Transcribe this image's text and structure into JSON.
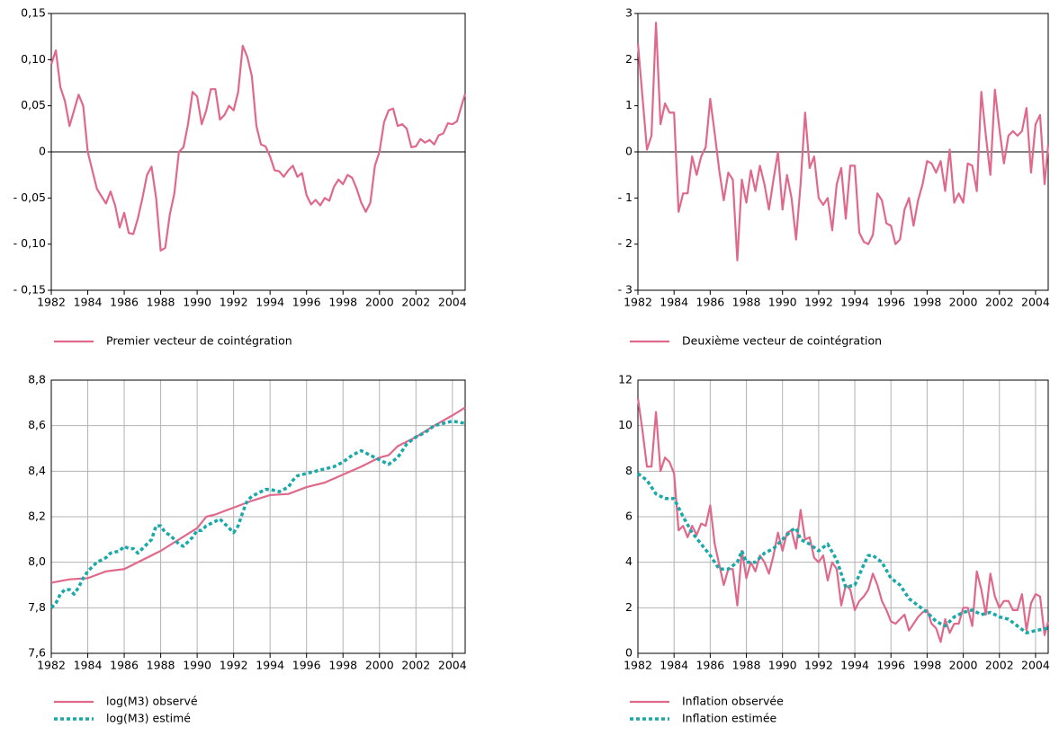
{
  "chart_data": [
    {
      "type": "line",
      "xlim": [
        1982,
        2004.7
      ],
      "xticks": [
        1982,
        1984,
        1986,
        1988,
        1990,
        1992,
        1994,
        1996,
        1998,
        2000,
        2002,
        2004
      ],
      "ylim": [
        -0.15,
        0.15
      ],
      "yticks": [
        {
          "value": 0.15,
          "label": "0,15"
        },
        {
          "value": 0.1,
          "label": "0,10"
        },
        {
          "value": 0.05,
          "label": "0,05"
        },
        0,
        {
          "value": -0.05,
          "label": "- 0,05"
        },
        {
          "value": -0.1,
          "label": "- 0,10"
        },
        {
          "value": -0.15,
          "label": "- 0,15"
        }
      ],
      "grid": false,
      "zero_line": true,
      "x": [
        1982,
        1982.25,
        1982.5,
        1982.75,
        1983,
        1983.25,
        1983.5,
        1983.75,
        1984,
        1984.25,
        1984.5,
        1984.75,
        1985,
        1985.25,
        1985.5,
        1985.75,
        1986,
        1986.25,
        1986.5,
        1986.75,
        1987,
        1987.25,
        1987.5,
        1987.75,
        1988,
        1988.25,
        1988.5,
        1988.75,
        1989,
        1989.25,
        1989.5,
        1989.75,
        1990,
        1990.25,
        1990.5,
        1990.75,
        1991,
        1991.25,
        1991.5,
        1991.75,
        1992,
        1992.25,
        1992.5,
        1992.75,
        1993,
        1993.25,
        1993.5,
        1993.75,
        1994,
        1994.25,
        1994.5,
        1994.75,
        1995,
        1995.25,
        1995.5,
        1995.75,
        1996,
        1996.25,
        1996.5,
        1996.75,
        1997,
        1997.25,
        1997.5,
        1997.75,
        1998,
        1998.25,
        1998.5,
        1998.75,
        1999,
        1999.25,
        1999.5,
        1999.75,
        2000,
        2000.25,
        2000.5,
        2000.75,
        2001,
        2001.25,
        2001.5,
        2001.75,
        2002,
        2002.25,
        2002.5,
        2002.75,
        2003,
        2003.25,
        2003.5,
        2003.75,
        2004,
        2004.25,
        2004.5,
        2004.7
      ],
      "series": [
        {
          "name": "Premier vecteur de cointégration",
          "color": "#e0698b",
          "line_style": "solid",
          "values": [
            0.095,
            0.11,
            0.07,
            0.055,
            0.028,
            0.045,
            0.062,
            0.05,
            0.0,
            -0.02,
            -0.04,
            -0.048,
            -0.056,
            -0.043,
            -0.058,
            -0.082,
            -0.066,
            -0.088,
            -0.089,
            -0.072,
            -0.05,
            -0.025,
            -0.016,
            -0.05,
            -0.107,
            -0.104,
            -0.068,
            -0.045,
            0.0,
            0.005,
            0.03,
            0.065,
            0.06,
            0.03,
            0.045,
            0.068,
            0.068,
            0.035,
            0.04,
            0.05,
            0.045,
            0.065,
            0.115,
            0.103,
            0.082,
            0.028,
            0.008,
            0.006,
            -0.005,
            -0.02,
            -0.021,
            -0.027,
            -0.02,
            -0.015,
            -0.027,
            -0.023,
            -0.047,
            -0.057,
            -0.052,
            -0.058,
            -0.05,
            -0.053,
            -0.038,
            -0.03,
            -0.035,
            -0.025,
            -0.028,
            -0.04,
            -0.055,
            -0.065,
            -0.055,
            -0.015,
            0.0,
            0.032,
            0.045,
            0.047,
            0.028,
            0.03,
            0.025,
            0.005,
            0.006,
            0.014,
            0.01,
            0.013,
            0.008,
            0.018,
            0.02,
            0.031,
            0.03,
            0.033,
            0.05,
            0.063
          ]
        }
      ]
    },
    {
      "type": "line",
      "xlim": [
        1982,
        2004.7
      ],
      "xticks": [
        1982,
        1984,
        1986,
        1988,
        1990,
        1992,
        1994,
        1996,
        1998,
        2000,
        2002,
        2004
      ],
      "ylim": [
        -3,
        3
      ],
      "yticks": [
        3,
        2,
        1,
        0,
        {
          "value": -1,
          "label": "- 1"
        },
        {
          "value": -2,
          "label": "- 2"
        },
        {
          "value": -3,
          "label": "- 3"
        }
      ],
      "grid": false,
      "zero_line": true,
      "x": [
        1982,
        1982.25,
        1982.5,
        1982.75,
        1983,
        1983.25,
        1983.5,
        1983.75,
        1984,
        1984.25,
        1984.5,
        1984.75,
        1985,
        1985.25,
        1985.5,
        1985.75,
        1986,
        1986.25,
        1986.5,
        1986.75,
        1987,
        1987.25,
        1987.5,
        1987.75,
        1988,
        1988.25,
        1988.5,
        1988.75,
        1989,
        1989.25,
        1989.5,
        1989.75,
        1990,
        1990.25,
        1990.5,
        1990.75,
        1991,
        1991.25,
        1991.5,
        1991.75,
        1992,
        1992.25,
        1992.5,
        1992.75,
        1993,
        1993.25,
        1993.5,
        1993.75,
        1994,
        1994.25,
        1994.5,
        1994.75,
        1995,
        1995.25,
        1995.5,
        1995.75,
        1996,
        1996.25,
        1996.5,
        1996.75,
        1997,
        1997.25,
        1997.5,
        1997.75,
        1998,
        1998.25,
        1998.5,
        1998.75,
        1999,
        1999.25,
        1999.5,
        1999.75,
        2000,
        2000.25,
        2000.5,
        2000.75,
        2001,
        2001.25,
        2001.5,
        2001.75,
        2002,
        2002.25,
        2002.5,
        2002.75,
        2003,
        2003.25,
        2003.5,
        2003.75,
        2004,
        2004.25,
        2004.5,
        2004.7
      ],
      "series": [
        {
          "name": "Deuxième vecteur de cointégration",
          "color": "#e0698b",
          "line_style": "solid",
          "values": [
            2.35,
            1.2,
            0.05,
            0.35,
            2.8,
            0.6,
            1.05,
            0.85,
            0.85,
            -1.3,
            -0.9,
            -0.9,
            -0.1,
            -0.5,
            -0.1,
            0.1,
            1.15,
            0.4,
            -0.4,
            -1.05,
            -0.45,
            -0.6,
            -2.35,
            -0.6,
            -1.1,
            -0.4,
            -0.85,
            -0.3,
            -0.7,
            -1.25,
            -0.6,
            0.0,
            -1.25,
            -0.5,
            -1.0,
            -1.9,
            -0.7,
            0.85,
            -0.35,
            -0.1,
            -1.0,
            -1.15,
            -1.0,
            -1.7,
            -0.7,
            -0.35,
            -1.45,
            -0.3,
            -0.3,
            -1.75,
            -1.95,
            -2.0,
            -1.8,
            -0.9,
            -1.05,
            -1.55,
            -1.6,
            -2.0,
            -1.9,
            -1.25,
            -1.0,
            -1.6,
            -1.05,
            -0.7,
            -0.2,
            -0.25,
            -0.45,
            -0.2,
            -0.85,
            0.05,
            -1.1,
            -0.9,
            -1.1,
            -0.25,
            -0.3,
            -0.85,
            1.3,
            0.35,
            -0.5,
            1.35,
            0.5,
            -0.25,
            0.35,
            0.45,
            0.35,
            0.45,
            0.95,
            -0.45,
            0.6,
            0.8,
            -0.7,
            0.15
          ]
        }
      ]
    },
    {
      "type": "line",
      "xlim": [
        1982,
        2004.7
      ],
      "xticks": [
        1982,
        1984,
        1986,
        1988,
        1990,
        1992,
        1994,
        1996,
        1998,
        2000,
        2002,
        2004
      ],
      "ylim": [
        7.6,
        8.8
      ],
      "yticks": [
        {
          "value": 8.8,
          "label": "8,8"
        },
        {
          "value": 8.6,
          "label": "8,6"
        },
        {
          "value": 8.4,
          "label": "8,4"
        },
        {
          "value": 8.2,
          "label": "8,2"
        },
        {
          "value": 8.0,
          "label": "8,0"
        },
        {
          "value": 7.8,
          "label": "7,8"
        },
        {
          "value": 7.6,
          "label": "7,6"
        }
      ],
      "grid": true,
      "zero_line": false,
      "series": [
        {
          "name": "log(M3) observé",
          "color": "#e0698b",
          "line_style": "solid",
          "x": [
            1982,
            1983,
            1984,
            1985,
            1986,
            1987,
            1988,
            1989,
            1990,
            1990.5,
            1991,
            1992,
            1993,
            1994,
            1995,
            1996,
            1997,
            1998,
            1999,
            2000,
            2000.5,
            2001,
            2002,
            2003,
            2004,
            2004.7
          ],
          "values": [
            7.91,
            7.925,
            7.93,
            7.96,
            7.97,
            8.01,
            8.05,
            8.1,
            8.15,
            8.2,
            8.21,
            8.24,
            8.27,
            8.295,
            8.3,
            8.33,
            8.35,
            8.385,
            8.42,
            8.46,
            8.47,
            8.51,
            8.55,
            8.6,
            8.645,
            8.68
          ]
        },
        {
          "name": "log(M3) estimé",
          "color": "#1aa9a9",
          "line_style": "dashed",
          "x": [
            1982,
            1982.25,
            1982.5,
            1982.75,
            1983,
            1983.25,
            1983.5,
            1983.75,
            1984,
            1984.25,
            1984.5,
            1984.75,
            1985,
            1985.25,
            1985.5,
            1985.75,
            1986,
            1986.25,
            1986.5,
            1986.75,
            1987,
            1987.25,
            1987.5,
            1987.75,
            1988,
            1988.25,
            1988.5,
            1988.75,
            1989,
            1989.25,
            1989.5,
            1989.75,
            1990,
            1990.25,
            1990.5,
            1990.75,
            1991,
            1991.25,
            1991.5,
            1991.75,
            1992,
            1992.25,
            1992.5,
            1992.75,
            1993,
            1993.25,
            1993.5,
            1993.75,
            1994,
            1994.5,
            1995,
            1995.25,
            1995.5,
            1996,
            1996.5,
            1997,
            1997.5,
            1998,
            1998.5,
            1999,
            1999.5,
            2000,
            2000.5,
            2001,
            2001.5,
            2002,
            2002.5,
            2003,
            2003.5,
            2004,
            2004.7
          ],
          "values": [
            7.8,
            7.82,
            7.86,
            7.88,
            7.88,
            7.86,
            7.89,
            7.93,
            7.96,
            7.98,
            8.0,
            8.01,
            8.02,
            8.04,
            8.045,
            8.05,
            8.07,
            8.06,
            8.06,
            8.04,
            8.06,
            8.08,
            8.1,
            8.16,
            8.16,
            8.13,
            8.12,
            8.1,
            8.08,
            8.07,
            8.09,
            8.11,
            8.14,
            8.14,
            8.16,
            8.17,
            8.18,
            8.19,
            8.17,
            8.15,
            8.13,
            8.16,
            8.22,
            8.27,
            8.29,
            8.3,
            8.31,
            8.32,
            8.32,
            8.31,
            8.33,
            8.36,
            8.38,
            8.39,
            8.4,
            8.41,
            8.42,
            8.44,
            8.47,
            8.49,
            8.47,
            8.45,
            8.43,
            8.46,
            8.52,
            8.55,
            8.57,
            8.6,
            8.61,
            8.62,
            8.61
          ]
        }
      ]
    },
    {
      "type": "line",
      "xlim": [
        1982,
        2004.7
      ],
      "xticks": [
        1982,
        1984,
        1986,
        1988,
        1990,
        1992,
        1994,
        1996,
        1998,
        2000,
        2002,
        2004
      ],
      "ylim": [
        0,
        12
      ],
      "yticks": [
        12,
        10,
        8,
        6,
        4,
        2,
        0
      ],
      "grid": true,
      "zero_line": false,
      "series": [
        {
          "name": "Inflation observée",
          "color": "#e0698b",
          "line_style": "solid",
          "x": [
            1982,
            1982.25,
            1982.5,
            1982.75,
            1983,
            1983.25,
            1983.5,
            1983.75,
            1984,
            1984.25,
            1984.5,
            1984.75,
            1985,
            1985.25,
            1985.5,
            1985.75,
            1986,
            1986.25,
            1986.5,
            1986.75,
            1987,
            1987.25,
            1987.5,
            1987.75,
            1988,
            1988.25,
            1988.5,
            1988.75,
            1989,
            1989.25,
            1989.5,
            1989.75,
            1990,
            1990.25,
            1990.5,
            1990.75,
            1991,
            1991.25,
            1991.5,
            1991.75,
            1992,
            1992.25,
            1992.5,
            1992.75,
            1993,
            1993.25,
            1993.5,
            1993.75,
            1994,
            1994.25,
            1994.5,
            1994.75,
            1995,
            1995.25,
            1995.5,
            1995.75,
            1996,
            1996.25,
            1996.5,
            1996.75,
            1997,
            1997.25,
            1997.5,
            1997.75,
            1998,
            1998.25,
            1998.5,
            1998.75,
            1999,
            1999.25,
            1999.5,
            1999.75,
            2000,
            2000.25,
            2000.5,
            2000.75,
            2001,
            2001.25,
            2001.5,
            2001.75,
            2002,
            2002.25,
            2002.5,
            2002.75,
            2003,
            2003.25,
            2003.5,
            2003.75,
            2004,
            2004.25,
            2004.5,
            2004.7
          ],
          "values": [
            11.2,
            9.8,
            8.2,
            8.2,
            10.6,
            8.0,
            8.6,
            8.4,
            7.9,
            5.4,
            5.6,
            5.1,
            5.6,
            5.2,
            5.7,
            5.6,
            6.5,
            4.8,
            3.9,
            3.0,
            3.7,
            3.7,
            2.1,
            4.5,
            3.3,
            4.0,
            3.6,
            4.3,
            4.0,
            3.5,
            4.3,
            5.3,
            4.5,
            5.3,
            5.4,
            4.6,
            6.3,
            5.0,
            5.1,
            4.2,
            4.0,
            4.3,
            3.2,
            4.0,
            3.7,
            2.1,
            3.0,
            2.8,
            1.9,
            2.3,
            2.5,
            2.8,
            3.5,
            3.0,
            2.3,
            1.9,
            1.4,
            1.3,
            1.5,
            1.7,
            1.0,
            1.3,
            1.6,
            1.8,
            1.9,
            1.3,
            1.1,
            0.5,
            1.5,
            0.9,
            1.3,
            1.3,
            2.0,
            2.0,
            1.2,
            3.6,
            2.8,
            1.7,
            3.5,
            2.5,
            2.0,
            2.3,
            2.3,
            1.9,
            1.9,
            2.6,
            1.0,
            2.2,
            2.6,
            2.5,
            0.8,
            1.4
          ]
        },
        {
          "name": "Inflation estimée",
          "color": "#1aa9a9",
          "line_style": "dashed",
          "x": [
            1982,
            1982.5,
            1983,
            1983.5,
            1984,
            1984.5,
            1985,
            1985.5,
            1986,
            1986.5,
            1987,
            1987.5,
            1987.75,
            1988,
            1988.5,
            1989,
            1989.5,
            1990,
            1990.5,
            1990.75,
            1991,
            1991.5,
            1992,
            1992.5,
            1993,
            1993.5,
            1994,
            1994.5,
            1994.75,
            1995,
            1995.5,
            1996,
            1996.5,
            1997,
            1997.5,
            1998,
            1998.5,
            1999,
            1999.5,
            2000,
            2000.5,
            2001,
            2001.5,
            2002,
            2002.5,
            2003,
            2003.5,
            2004,
            2004.7
          ],
          "values": [
            7.9,
            7.6,
            7.0,
            6.8,
            6.8,
            6.0,
            5.3,
            4.8,
            4.3,
            3.7,
            3.7,
            4.0,
            4.5,
            4.0,
            4.0,
            4.4,
            4.6,
            5.0,
            5.4,
            5.5,
            5.0,
            4.8,
            4.5,
            4.8,
            4.1,
            2.9,
            3.0,
            3.9,
            4.3,
            4.3,
            4.0,
            3.3,
            3.0,
            2.4,
            2.1,
            1.8,
            1.4,
            1.2,
            1.6,
            1.8,
            1.9,
            1.7,
            1.8,
            1.6,
            1.5,
            1.2,
            0.9,
            1.0,
            1.1
          ]
        }
      ]
    }
  ]
}
